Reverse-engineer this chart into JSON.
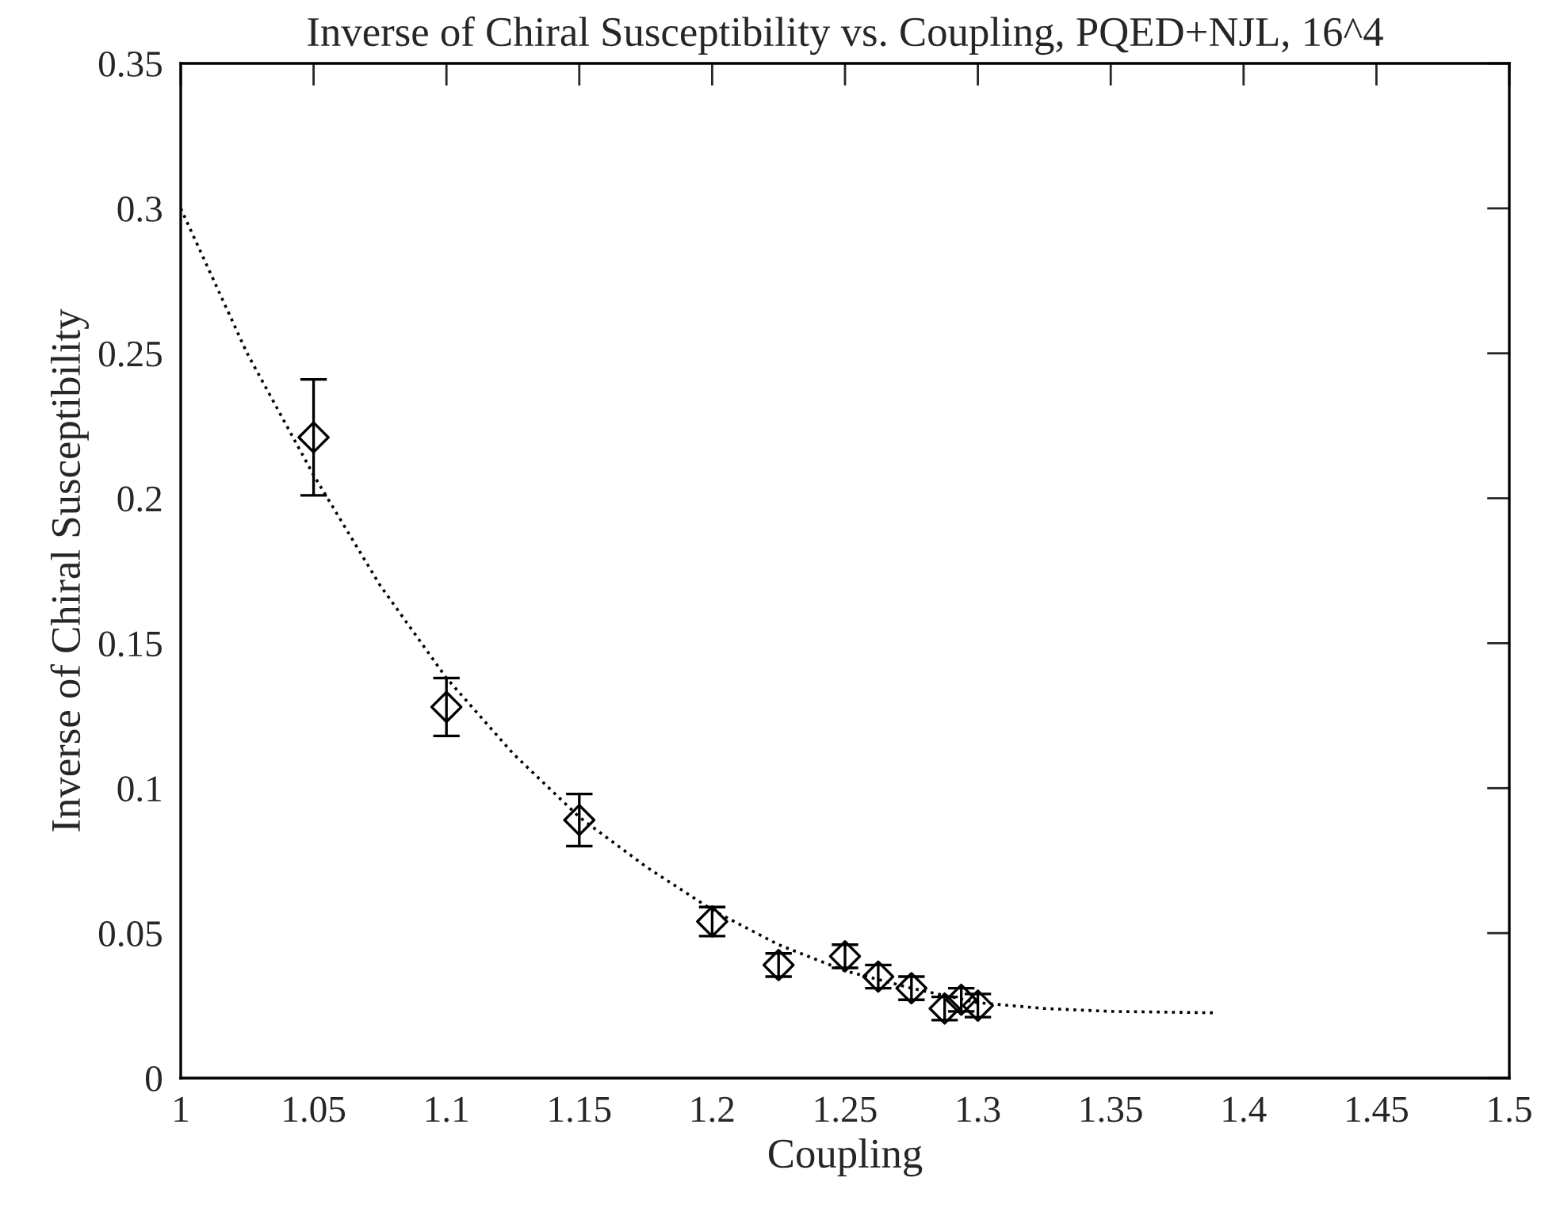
{
  "chart_data": {
    "type": "scatter",
    "title": "Inverse of Chiral Susceptibility vs. Coupling, PQED+NJL, 16^4",
    "xlabel": "Coupling",
    "ylabel": "Inverse of Chiral Susceptibility",
    "xlim": [
      1,
      1.5
    ],
    "xticks": [
      1,
      1.05,
      1.1,
      1.15,
      1.2,
      1.25,
      1.3,
      1.35,
      1.4,
      1.45,
      1.5
    ],
    "ylim": [
      0,
      0.35
    ],
    "yticks": [
      0,
      0.05,
      0.1,
      0.15,
      0.2,
      0.25,
      0.3,
      0.35
    ],
    "grid": false,
    "series": [
      {
        "color": "#000000",
        "marker": "diamond",
        "x": [
          1.05,
          1.1,
          1.15,
          1.2,
          1.225,
          1.25,
          1.2625,
          1.275,
          1.2875,
          1.29375,
          1.3
        ],
        "values": [
          0.221,
          0.128,
          0.089,
          0.054,
          0.039,
          0.042,
          0.035,
          0.031,
          0.024,
          0.027,
          0.025
        ],
        "errors": [
          0.02,
          0.01,
          0.009,
          0.005,
          0.004,
          0.004,
          0.004,
          0.004,
          0.004,
          0.004,
          0.004
        ]
      },
      {
        "type": "line",
        "color": "#000000",
        "line_style": "dotted",
        "marker": "none",
        "x": [
          1.0,
          1.025,
          1.05,
          1.075,
          1.1,
          1.125,
          1.15,
          1.175,
          1.2,
          1.225,
          1.25,
          1.275,
          1.3,
          1.325,
          1.35,
          1.39
        ],
        "values": [
          0.3,
          0.25,
          0.208,
          0.17,
          0.138,
          0.112,
          0.09,
          0.073,
          0.058,
          0.046,
          0.037,
          0.031,
          0.026,
          0.024,
          0.023,
          0.0225
        ]
      }
    ]
  }
}
